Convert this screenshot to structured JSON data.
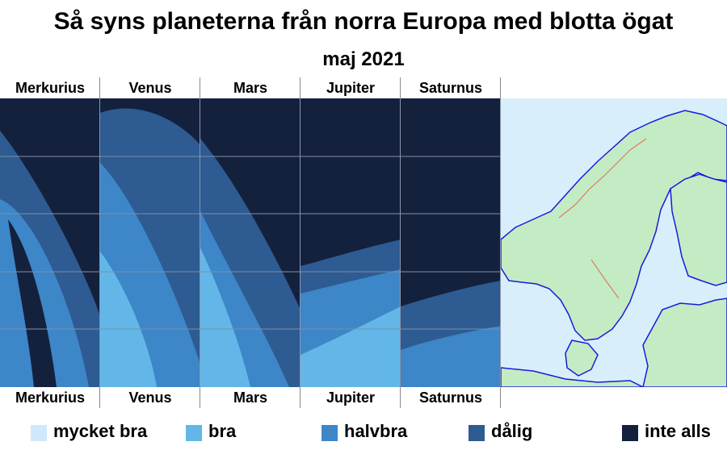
{
  "title": "Så syns planeterna från norra Europa med blotta ögat",
  "subtitle": "maj 2021",
  "chart_data": {
    "type": "heatmap",
    "planets": [
      "Merkurius",
      "Venus",
      "Mars",
      "Jupiter",
      "Saturnus"
    ],
    "levels": [
      {
        "label": "mycket bra",
        "color": "#cfe9fb"
      },
      {
        "label": "bra",
        "color": "#62b7e8"
      },
      {
        "label": "halvbra",
        "color": "#3d86c8"
      },
      {
        "label": "dålig",
        "color": "#2d5b92"
      },
      {
        "label": "inte alls",
        "color": "#14213d"
      }
    ],
    "grid": true,
    "gridlines_per_panel": 4,
    "legend_position": "bottom",
    "map_region": "northern Europe"
  },
  "map": {
    "sea_color": "#d8eefb",
    "land_color": "#c4ecc4",
    "coast_color": "#1a1adc",
    "border_color": "#e07a5f"
  }
}
